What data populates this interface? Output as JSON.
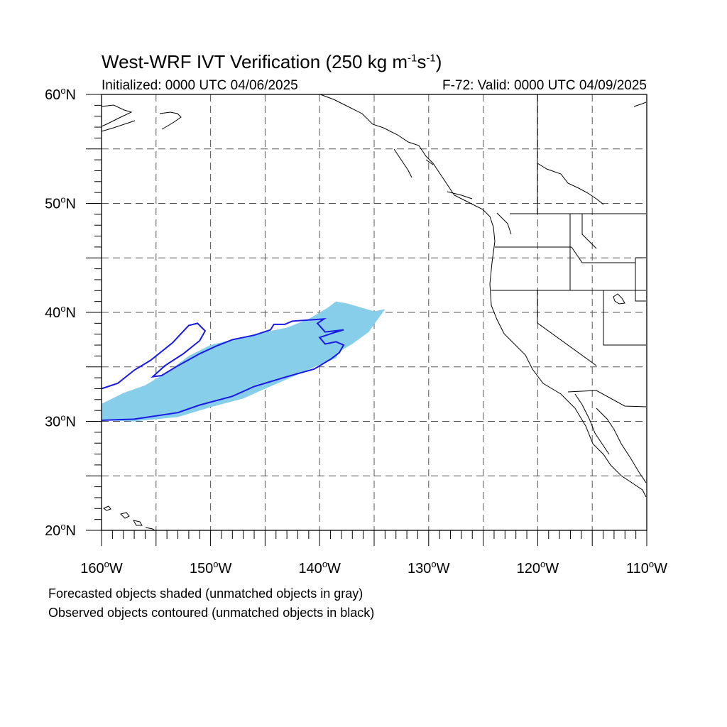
{
  "title": {
    "main": "West-WRF IVT Verification (250 kg m",
    "exp1": "-1",
    "mid": "s",
    "exp2": "-1",
    "close": ")"
  },
  "subtitle": {
    "left": "Initialized: 0000 UTC 04/06/2025",
    "right": "F-72: Valid: 0000 UTC 04/09/2025"
  },
  "map": {
    "projection": "cylindrical-equidistant",
    "lon_range": [
      -160,
      -110
    ],
    "lat_range": [
      20,
      60
    ],
    "gridline_lons": [
      -155,
      -150,
      -145,
      -140,
      -135,
      -130,
      -125,
      -120,
      -115
    ],
    "gridline_lats": [
      25,
      30,
      35,
      40,
      45,
      50,
      55
    ],
    "lat_ticks": [
      {
        "value": 20,
        "deg": "20",
        "hem": "N"
      },
      {
        "value": 30,
        "deg": "30",
        "hem": "N"
      },
      {
        "value": 40,
        "deg": "40",
        "hem": "N"
      },
      {
        "value": 50,
        "deg": "50",
        "hem": "N"
      },
      {
        "value": 60,
        "deg": "60",
        "hem": "N"
      }
    ],
    "lon_ticks": [
      {
        "value": -160,
        "deg": "160",
        "hem": "W"
      },
      {
        "value": -150,
        "deg": "150",
        "hem": "W"
      },
      {
        "value": -140,
        "deg": "140",
        "hem": "W"
      },
      {
        "value": -130,
        "deg": "130",
        "hem": "W"
      },
      {
        "value": -120,
        "deg": "120",
        "hem": "W"
      },
      {
        "value": -110,
        "deg": "110",
        "hem": "W"
      }
    ],
    "colors": {
      "forecast_fill": "#87ceeb",
      "observed_contour": "#1a1ae6",
      "coastline": "#000000",
      "grid": "#555555"
    },
    "forecast_object": [
      [
        -160,
        31.6
      ],
      [
        -160,
        30.1
      ],
      [
        -157,
        30.0
      ],
      [
        -153,
        30.4
      ],
      [
        -150,
        31.3
      ],
      [
        -147,
        32.1
      ],
      [
        -145,
        33.0
      ],
      [
        -142,
        34.3
      ],
      [
        -140,
        35.2
      ],
      [
        -138.5,
        35.8
      ],
      [
        -138.2,
        36.4
      ],
      [
        -137,
        37.1
      ],
      [
        -135.5,
        38.2
      ],
      [
        -134,
        40.3
      ],
      [
        -135,
        40.1
      ],
      [
        -137.4,
        40.8
      ],
      [
        -138.5,
        41.0
      ],
      [
        -139.3,
        40.4
      ],
      [
        -141,
        39.4
      ],
      [
        -143,
        38.6
      ],
      [
        -146,
        38.0
      ],
      [
        -148,
        37.5
      ],
      [
        -150,
        37.0
      ],
      [
        -152,
        36.0
      ],
      [
        -154,
        34.5
      ],
      [
        -156,
        33.3
      ],
      [
        -158,
        32.6
      ],
      [
        -160,
        31.6
      ]
    ],
    "observed_object": [
      [
        -160,
        30.1
      ],
      [
        -157,
        30.2
      ],
      [
        -153,
        30.8
      ],
      [
        -151,
        31.5
      ],
      [
        -148,
        32.3
      ],
      [
        -146,
        33.2
      ],
      [
        -143,
        34.1
      ],
      [
        -140.5,
        34.8
      ],
      [
        -139,
        35.7
      ],
      [
        -138.2,
        36.3
      ],
      [
        -137.8,
        37.0
      ],
      [
        -138.5,
        37.3
      ],
      [
        -139.5,
        37.1
      ],
      [
        -140,
        37.7
      ],
      [
        -138.8,
        38.1
      ],
      [
        -137.8,
        38.4
      ],
      [
        -139.5,
        38.2
      ],
      [
        -140.2,
        39.0
      ],
      [
        -139.6,
        39.4
      ],
      [
        -141,
        39.3
      ],
      [
        -142.5,
        39.2
      ],
      [
        -143.2,
        38.9
      ],
      [
        -144.2,
        38.9
      ],
      [
        -144.5,
        38.4
      ],
      [
        -146,
        37.9
      ],
      [
        -148,
        37.5
      ],
      [
        -149.5,
        36.9
      ],
      [
        -151,
        36.2
      ],
      [
        -153,
        35.1
      ],
      [
        -154.5,
        34.2
      ],
      [
        -155.3,
        34.1
      ],
      [
        -154.2,
        35.1
      ],
      [
        -152.5,
        36.2
      ],
      [
        -151,
        37.4
      ],
      [
        -150.5,
        38.3
      ],
      [
        -151.2,
        39.0
      ],
      [
        -152,
        38.8
      ],
      [
        -153.5,
        37.2
      ],
      [
        -155.5,
        35.6
      ],
      [
        -157,
        34.7
      ],
      [
        -158.5,
        33.5
      ],
      [
        -160,
        33.0
      ]
    ]
  },
  "captions": {
    "line1": "Forecasted objects shaded (unmatched objects in gray)",
    "line2": "Observed objects contoured (unmatched objects in black)"
  }
}
